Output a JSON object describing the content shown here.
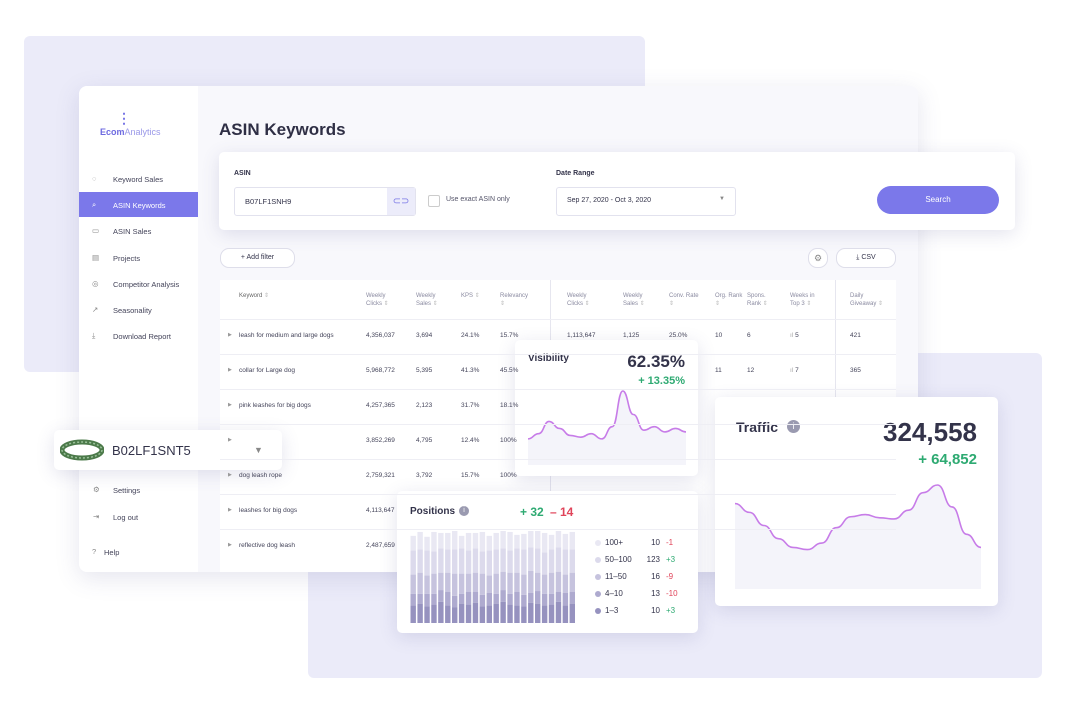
{
  "brand": {
    "part1": "Ecom",
    "part2": "Analytics"
  },
  "sidebar": {
    "items": [
      "Keyword Sales",
      "ASIN Keywords",
      "ASIN Sales",
      "Projects",
      "Competitor Analysis",
      "Seasonality",
      "Download Report"
    ],
    "active": 1,
    "bottom": [
      "Settings",
      "Log out",
      "Help"
    ]
  },
  "page_title": "ASIN Keywords",
  "search": {
    "asin_label": "ASIN",
    "asin_value": "B07LF1SNH9",
    "exact_label": "Use exact ASIN only",
    "date_label": "Date Range",
    "date_value": "Sep 27, 2020 - Oct 3, 2020",
    "button": "Search"
  },
  "toolbar": {
    "add_filter": "Add filter",
    "csv": "CSV"
  },
  "table": {
    "headers": [
      "Keyword",
      "Weekly Clicks",
      "Weekly Sales",
      "KPS",
      "Relevancy",
      "Weekly Clicks",
      "Weekly Sales",
      "Conv. Rate",
      "Org. Rank",
      "Spons. Rank",
      "Weeks in Top 3",
      "Daily Giveaway"
    ],
    "rows": [
      [
        "leash for medium and large dogs",
        "4,356,037",
        "3,694",
        "24.1%",
        "15.7%",
        "1,113,647",
        "1,125",
        "25.0%",
        "10",
        "6",
        "5",
        "421"
      ],
      [
        "collar for Large dog",
        "5,968,772",
        "5,395",
        "41.3%",
        "45.5%",
        null,
        null,
        null,
        "11",
        "12",
        "7",
        "365"
      ],
      [
        "pink leashes for big dogs",
        "4,257,365",
        "2,123",
        "31.7%",
        "18.1%",
        null,
        null,
        null,
        null,
        null,
        null,
        null
      ],
      [
        null,
        "3,852,269",
        "4,795",
        "12.4%",
        "100%",
        null,
        null,
        null,
        null,
        null,
        null,
        null
      ],
      [
        "dog leash rope",
        "2,759,321",
        "3,792",
        "15.7%",
        "100%",
        null,
        null,
        null,
        null,
        null,
        null,
        null
      ],
      [
        "leashes for big dogs",
        "4,113,647",
        null,
        null,
        null,
        null,
        null,
        null,
        null,
        null,
        null,
        null
      ],
      [
        "reflective dog leash",
        "2,487,659",
        null,
        null,
        null,
        null,
        null,
        null,
        null,
        null,
        null,
        null
      ]
    ]
  },
  "product": {
    "asin": "B02LF1SNT5"
  },
  "cards": {
    "visibility": {
      "title": "Visibility",
      "value": "62.35%",
      "change": "+ 13.35%",
      "color": "#c77ce8",
      "values": [
        30,
        36,
        50,
        42,
        34,
        32,
        36,
        30,
        44,
        85,
        58,
        40,
        44,
        38,
        42,
        38
      ]
    },
    "traffic": {
      "title": "Traffic",
      "value": "324,558",
      "change": "+ 64,852",
      "color": "#c77ce8",
      "values": [
        78,
        70,
        58,
        46,
        38,
        36,
        42,
        56,
        66,
        68,
        65,
        64,
        72,
        88,
        95,
        75,
        50,
        38
      ]
    },
    "positions": {
      "title": "Positions",
      "up": "+ 32",
      "down": "– 14",
      "series": [
        {
          "name": "100+",
          "count": "10",
          "change": "-1",
          "color": "#e9e8f3",
          "values": [
            15,
            18,
            14,
            20,
            16,
            17,
            19,
            13,
            18,
            16,
            20,
            15,
            17,
            18,
            19,
            14,
            16,
            17,
            18,
            20,
            15,
            17,
            16,
            18
          ]
        },
        {
          "name": "50–100",
          "count": "123",
          "change": "+3",
          "color": "#dcdaec",
          "values": [
            25,
            24,
            26,
            23,
            25,
            24,
            25,
            26,
            24,
            25,
            23,
            26,
            25,
            24,
            23,
            25,
            26,
            24,
            25,
            23,
            24,
            25,
            26,
            24
          ]
        },
        {
          "name": "11–50",
          "count": "16",
          "change": "-9",
          "color": "#c6c3de",
          "values": [
            20,
            22,
            19,
            21,
            18,
            20,
            23,
            21,
            19,
            20,
            22,
            18,
            21,
            19,
            22,
            20,
            21,
            23,
            19,
            20,
            22,
            21,
            19,
            20
          ]
        },
        {
          "name": "4–10",
          "count": "13",
          "change": "-10",
          "color": "#aeaacf",
          "values": [
            12,
            10,
            13,
            11,
            12,
            14,
            12,
            10,
            13,
            11,
            12,
            13,
            10,
            12,
            11,
            14,
            12,
            10,
            13,
            12,
            11,
            10,
            13,
            12
          ]
        },
        {
          "name": "1–3",
          "count": "10",
          "change": "+3",
          "color": "#9692bf",
          "values": [
            18,
            20,
            17,
            19,
            22,
            18,
            16,
            20,
            19,
            21,
            17,
            18,
            20,
            22,
            19,
            18,
            17,
            21,
            20,
            18,
            19,
            22,
            18,
            20
          ]
        }
      ]
    }
  }
}
